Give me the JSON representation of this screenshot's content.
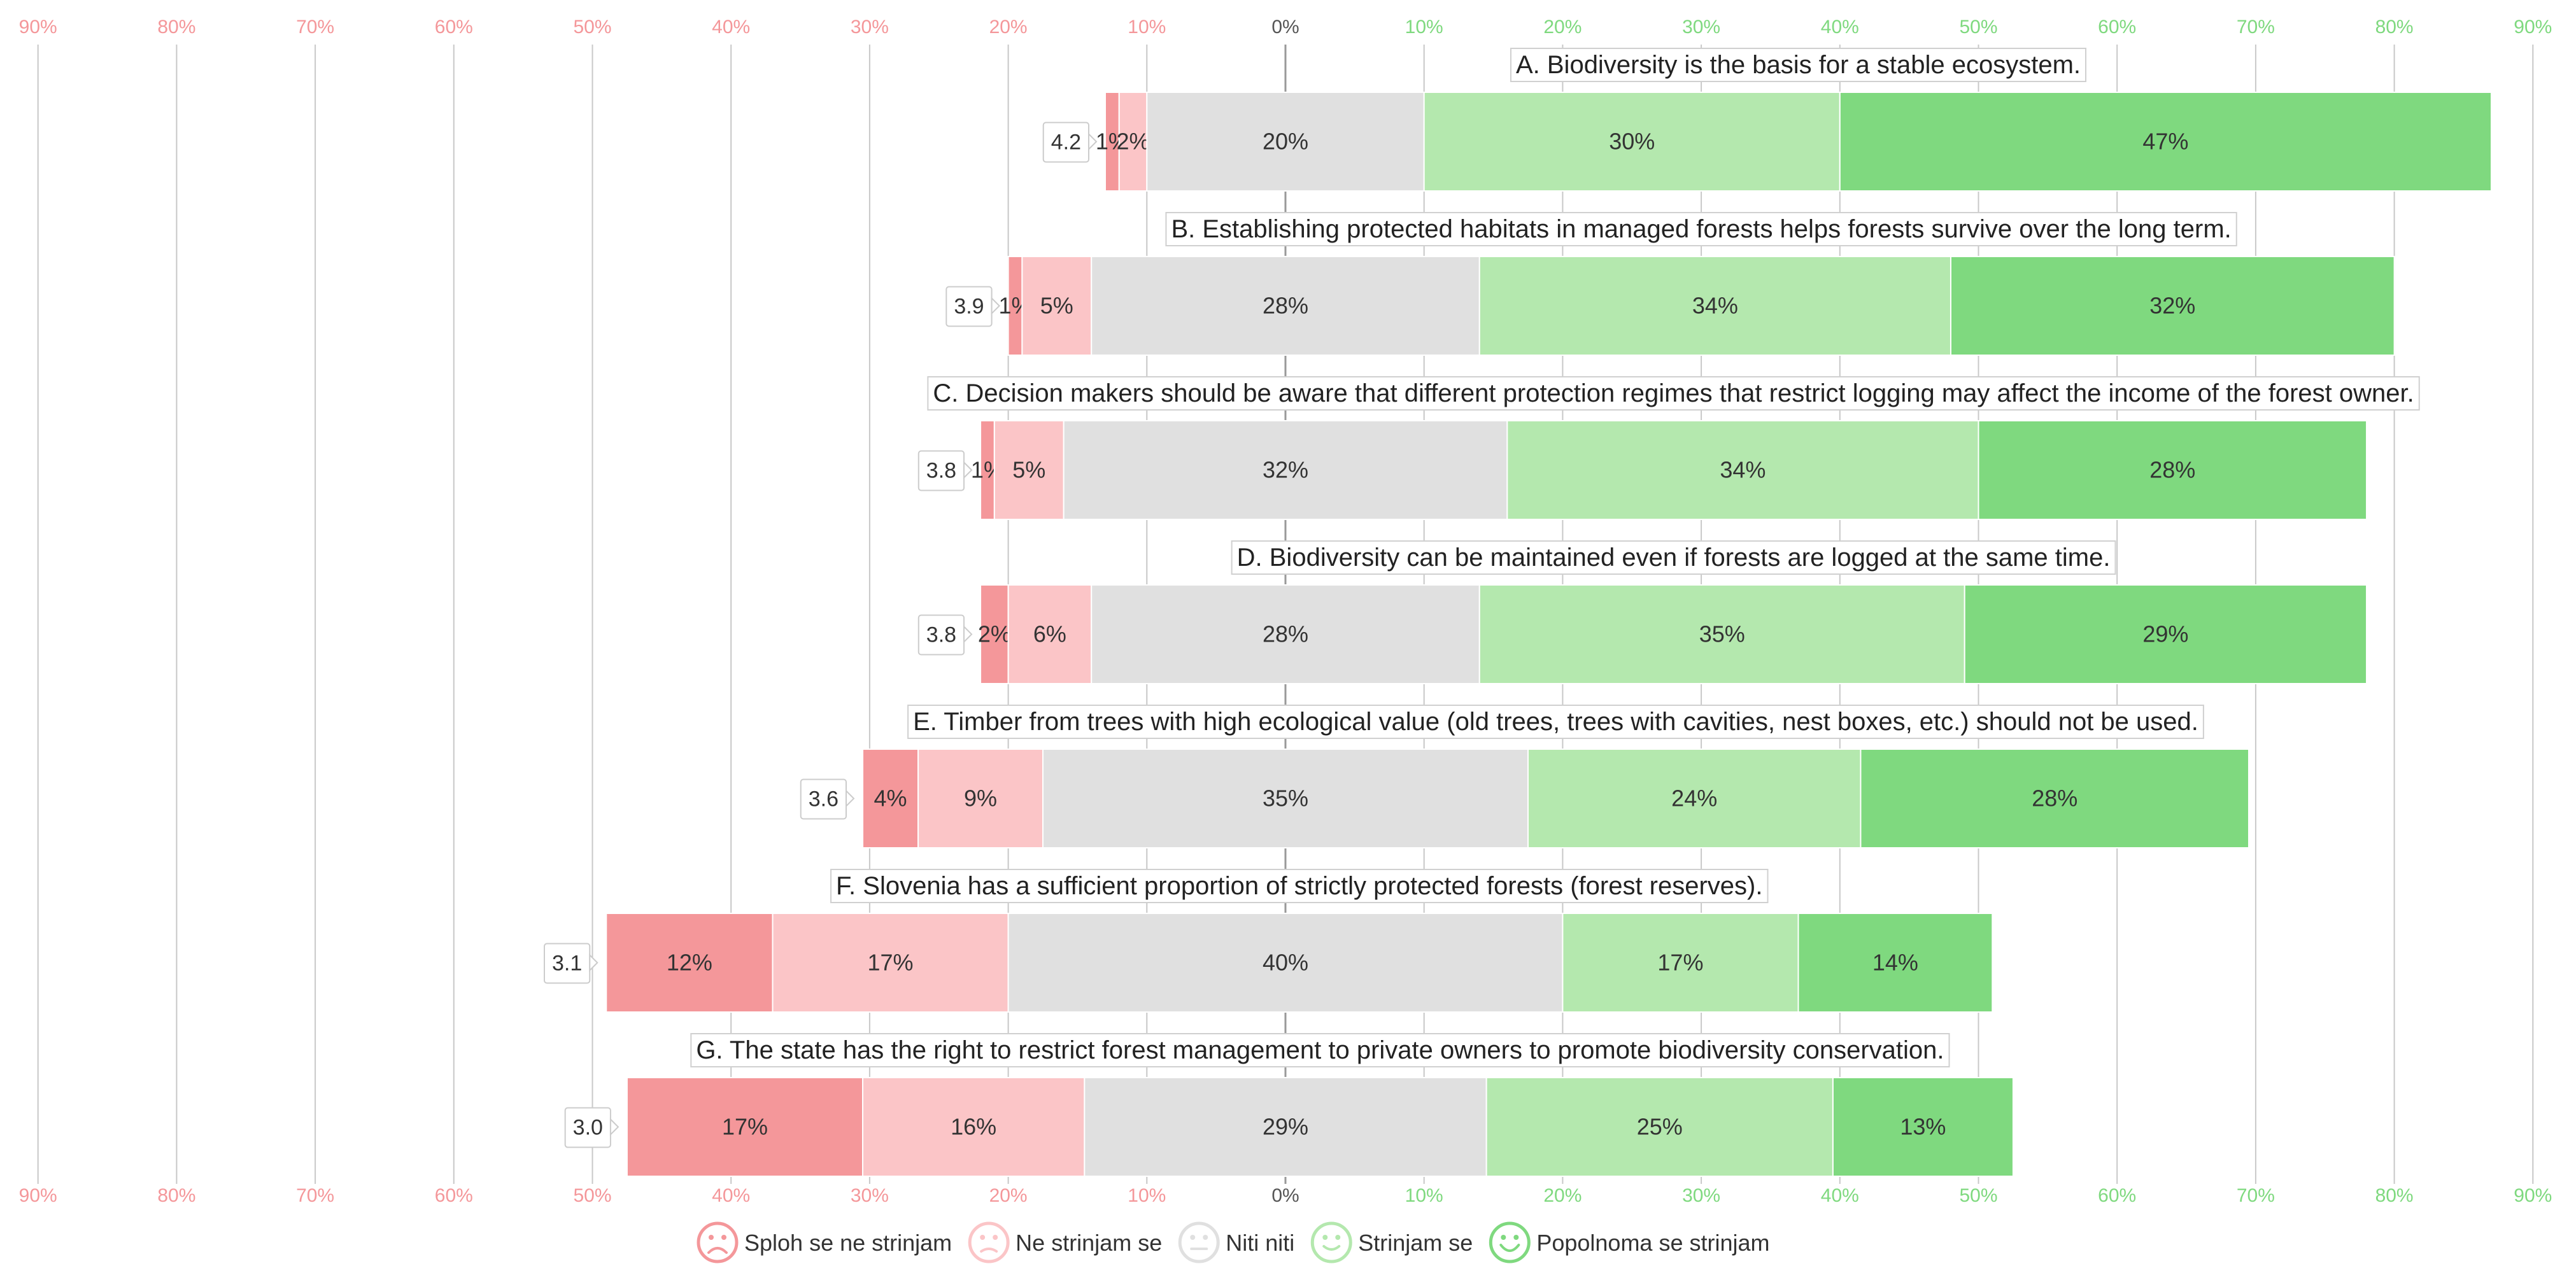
{
  "chart_data": {
    "type": "bar",
    "subtype": "diverging-stacked-likert",
    "x_axis": {
      "min": -90,
      "max": 90,
      "step": 10,
      "tick_labels": [
        "90%",
        "80%",
        "70%",
        "60%",
        "50%",
        "40%",
        "30%",
        "20%",
        "10%",
        "0%",
        "10%",
        "20%",
        "30%",
        "40%",
        "50%",
        "60%",
        "70%",
        "80%",
        "90%"
      ]
    },
    "categories_legend": [
      {
        "name": "Sploh se ne strinjam",
        "color": "#f4979a"
      },
      {
        "name": "Ne strinjam se",
        "color": "#fbc5c7"
      },
      {
        "name": "Niti niti",
        "color": "#e0e0e0"
      },
      {
        "name": "Strinjam se",
        "color": "#b4e8ae"
      },
      {
        "name": "Popolnoma se strinjam",
        "color": "#7fd97f"
      }
    ],
    "items": [
      {
        "label": "A. Biodiversity is the basis for a stable ecosystem.",
        "mean": "4.2",
        "values": [
          1,
          2,
          20,
          30,
          47
        ],
        "value_labels": [
          "1%",
          "2%",
          "20%",
          "30%",
          "47%"
        ]
      },
      {
        "label": "B. Establishing protected habitats in managed forests helps forests survive over the long term.",
        "mean": "3.9",
        "values": [
          1,
          5,
          28,
          34,
          32
        ],
        "value_labels": [
          "1%",
          "5%",
          "28%",
          "34%",
          "32%"
        ]
      },
      {
        "label": "C. Decision makers should be aware that different protection regimes that restrict logging may affect the income of the forest owner.",
        "mean": "3.8",
        "values": [
          1,
          5,
          32,
          34,
          28
        ],
        "value_labels": [
          "1%",
          "5%",
          "32%",
          "34%",
          "28%"
        ]
      },
      {
        "label": "D. Biodiversity can be maintained even if forests are logged at the same time.",
        "mean": "3.8",
        "values": [
          2,
          6,
          28,
          35,
          29
        ],
        "value_labels": [
          "2%",
          "6%",
          "28%",
          "35%",
          "29%"
        ]
      },
      {
        "label": "E. Timber from trees with high ecological value (old trees, trees with cavities, nest boxes, etc.) should not be used.",
        "mean": "3.6",
        "values": [
          4,
          9,
          35,
          24,
          28
        ],
        "value_labels": [
          "4%",
          "9%",
          "35%",
          "24%",
          "28%"
        ]
      },
      {
        "label": "F. Slovenia has a sufficient proportion of strictly protected forests (forest reserves).",
        "mean": "3.1",
        "values": [
          12,
          17,
          40,
          17,
          14
        ],
        "value_labels": [
          "12%",
          "17%",
          "40%",
          "17%",
          "14%"
        ]
      },
      {
        "label": "G. The state has the right to restrict forest management to private owners to promote biodiversity conservation.",
        "mean": "3.0",
        "values": [
          17,
          16,
          29,
          25,
          13
        ],
        "value_labels": [
          "17%",
          "16%",
          "29%",
          "25%",
          "13%"
        ]
      }
    ],
    "colors": {
      "negative_tick": "#f4979a",
      "positive_tick": "#7fd97f",
      "neutral_tick": "#555555",
      "gridline": "#c8c8c8",
      "zero_line": "#999999"
    }
  }
}
